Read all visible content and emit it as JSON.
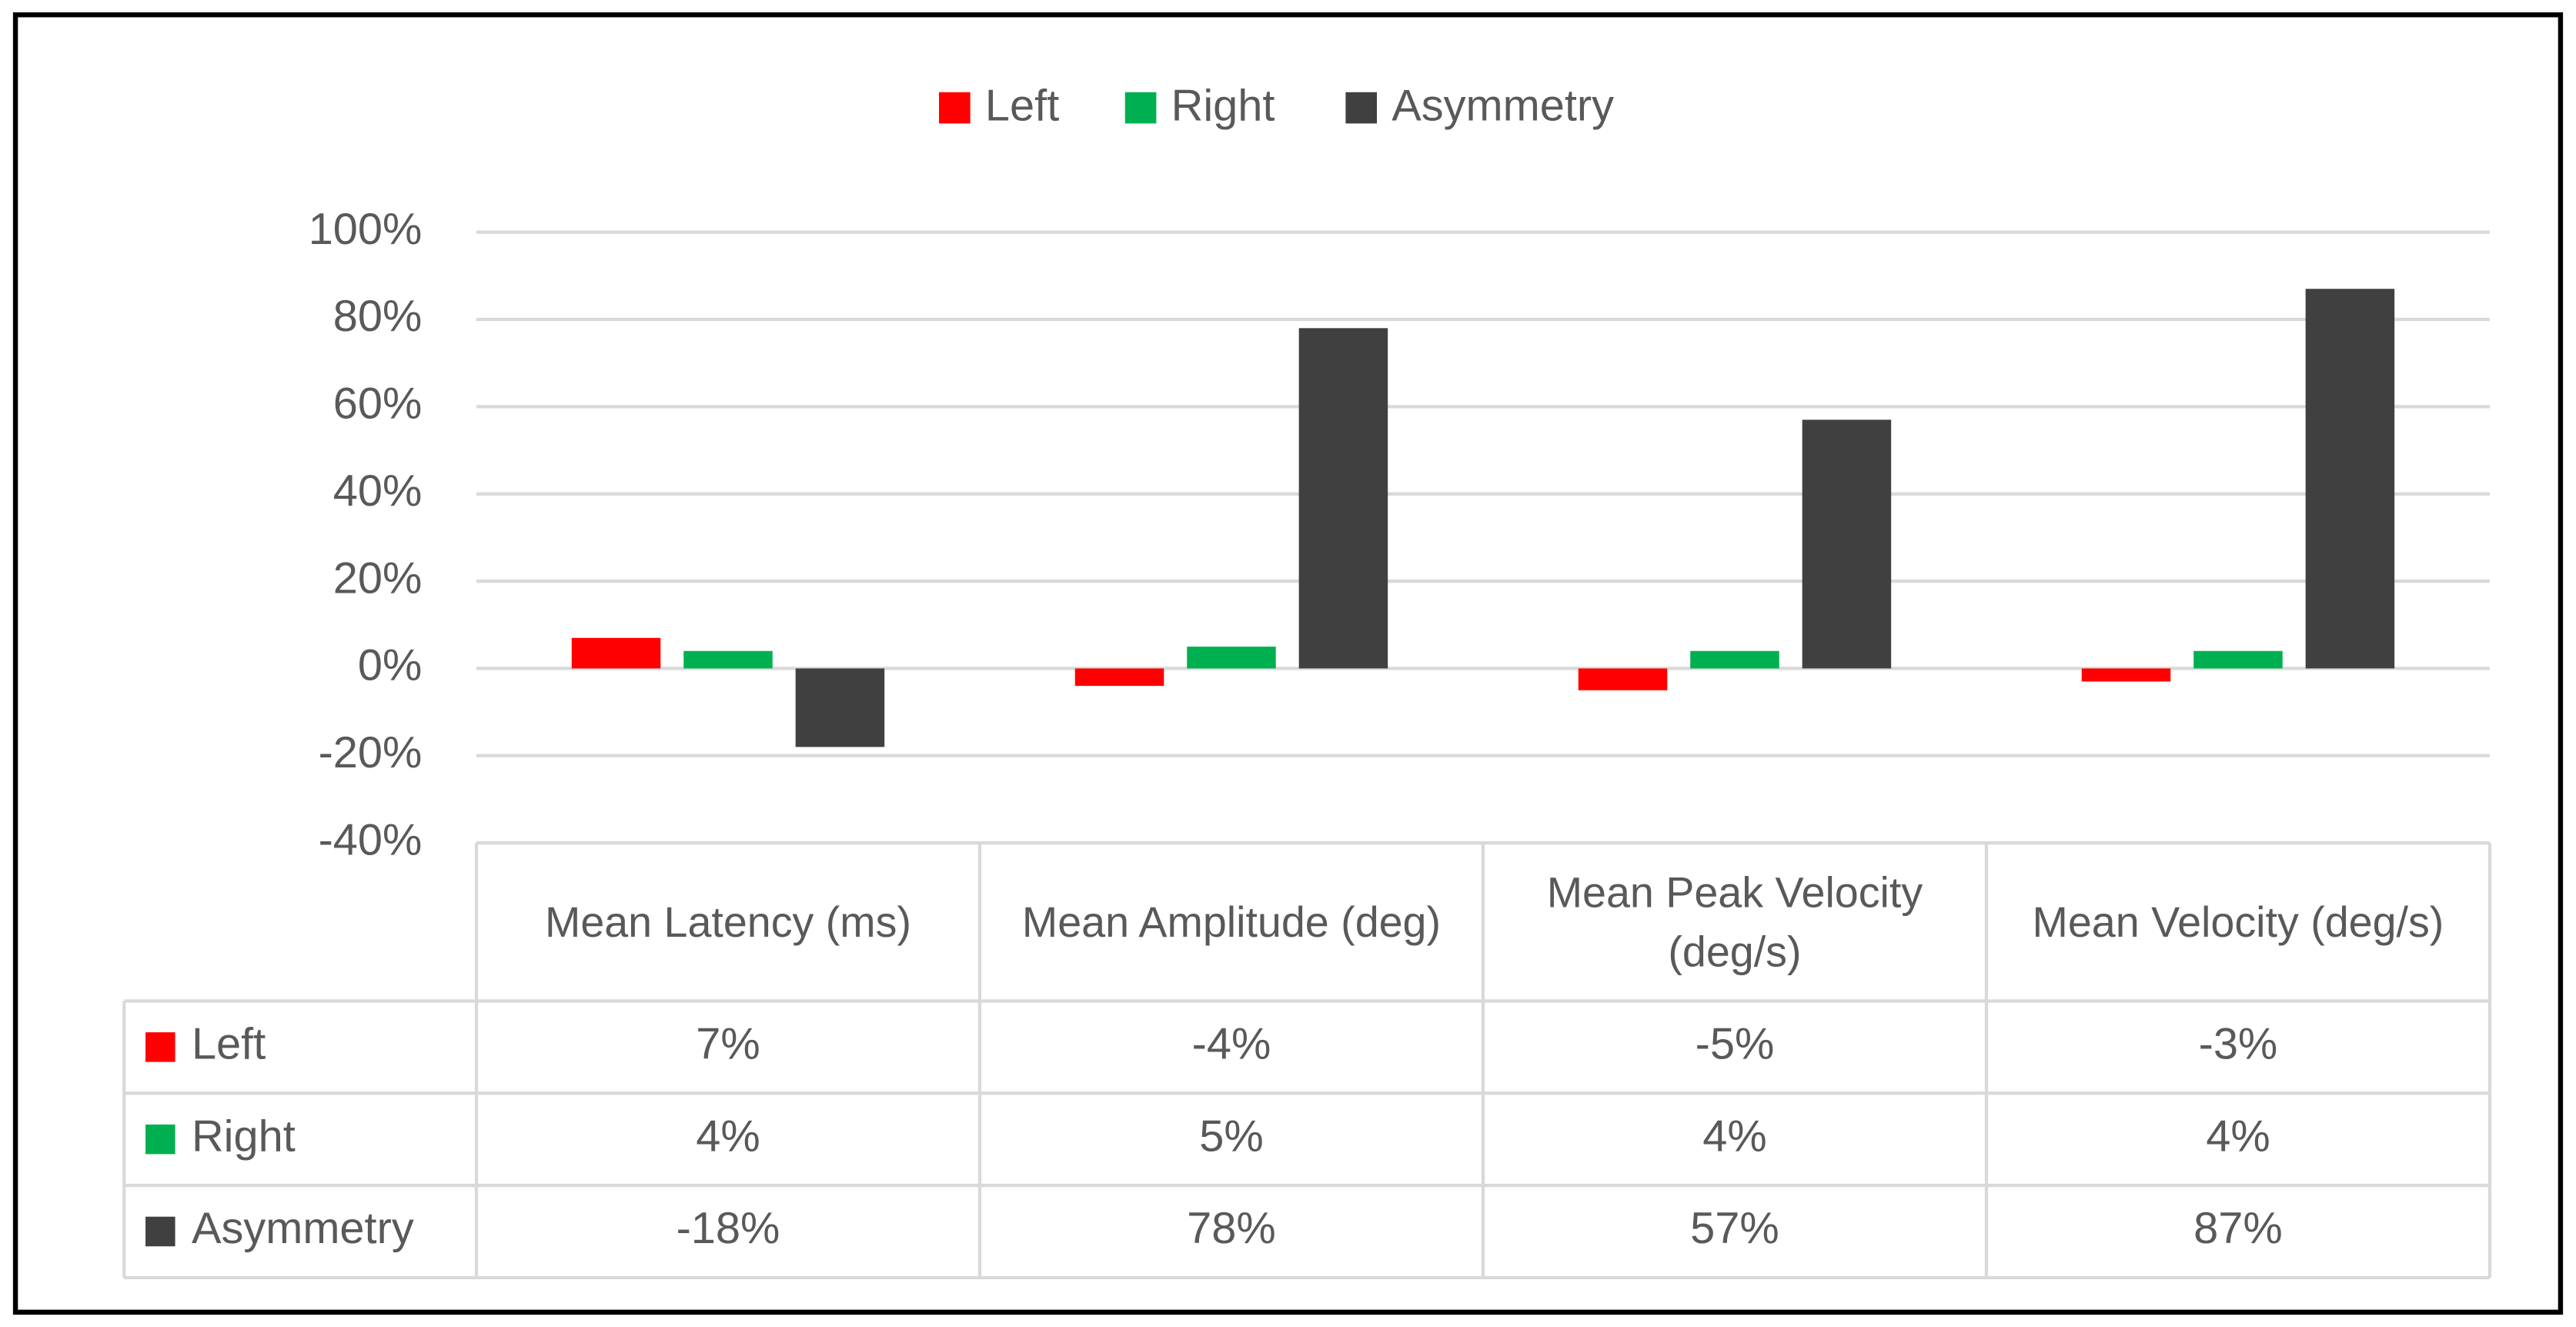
{
  "chart_data": {
    "type": "bar",
    "categories": [
      "Mean Latency (ms)",
      "Mean Amplitude (deg)",
      "Mean Peak Velocity (deg/s)",
      "Mean Velocity (deg/s)"
    ],
    "series": [
      {
        "name": "Left",
        "color": "#ff0000",
        "values": [
          7,
          -4,
          -5,
          -3
        ],
        "value_labels": [
          "7%",
          "-4%",
          "-5%",
          "-3%"
        ]
      },
      {
        "name": "Right",
        "color": "#00b050",
        "values": [
          4,
          5,
          4,
          4
        ],
        "value_labels": [
          "4%",
          "5%",
          "4%",
          "4%"
        ]
      },
      {
        "name": "Asymmetry",
        "color": "#404040",
        "values": [
          -18,
          78,
          57,
          87
        ],
        "value_labels": [
          "-18%",
          "78%",
          "57%",
          "87%"
        ]
      }
    ],
    "ylim": [
      -40,
      100
    ],
    "yticks": [
      {
        "value": -40,
        "label": "-40%"
      },
      {
        "value": -20,
        "label": "-20%"
      },
      {
        "value": 0,
        "label": "0%"
      },
      {
        "value": 20,
        "label": "20%"
      },
      {
        "value": 40,
        "label": "40%"
      },
      {
        "value": 60,
        "label": "60%"
      },
      {
        "value": 80,
        "label": "80%"
      },
      {
        "value": 100,
        "label": "100%"
      }
    ],
    "grid": true,
    "legend": "top",
    "data_table": true
  }
}
